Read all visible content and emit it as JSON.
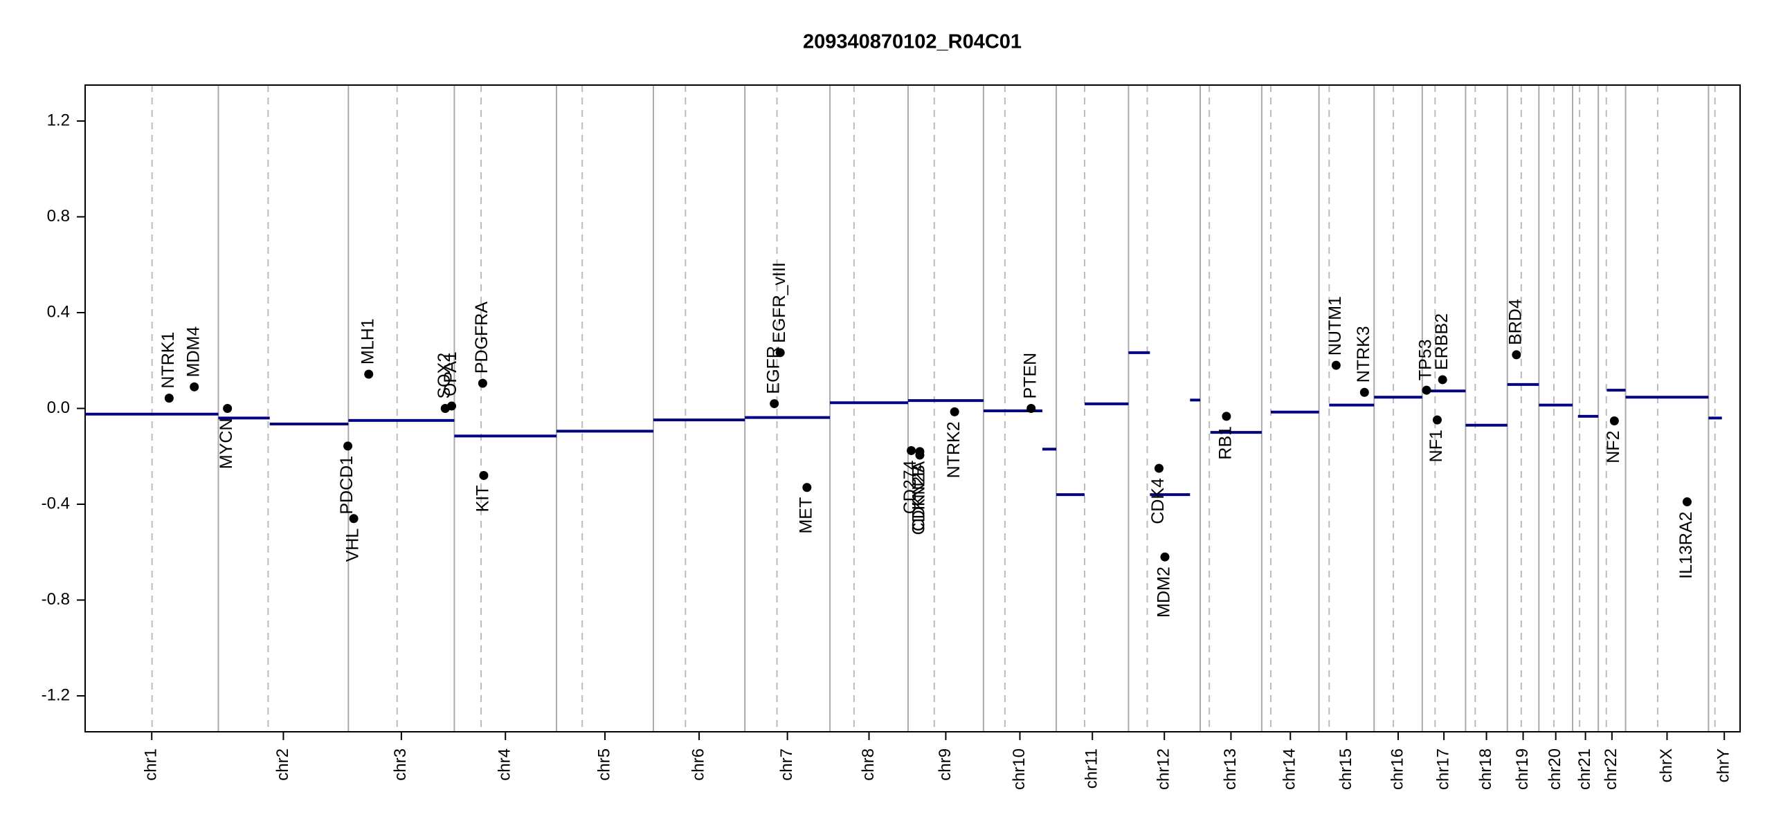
{
  "chart_data": {
    "type": "cnv",
    "title": "209340870102_R04C01",
    "ylim": [
      -1.35,
      1.35
    ],
    "yticks": [
      1.2,
      0.8,
      0.4,
      {
        "value": 0,
        "label": "0.0"
      },
      -0.4,
      -0.8,
      -1.2
    ],
    "chromosomes": [
      "chr1",
      "chr2",
      "chr3",
      "chr4",
      "chr5",
      "chr6",
      "chr7",
      "chr8",
      "chr9",
      "chr10",
      "chr11",
      "chr12",
      "chr13",
      "chr14",
      "chr15",
      "chr16",
      "chr17",
      "chr18",
      "chr19",
      "chr20",
      "chr21",
      "chr22",
      "chrX",
      "chrY"
    ],
    "lengths": [
      249,
      243,
      198,
      191,
      181,
      171,
      159,
      146,
      141,
      136,
      135,
      134,
      115,
      107,
      103,
      90,
      81,
      78,
      59,
      63,
      48,
      51,
      155,
      59
    ],
    "centromeres": [
      125,
      93,
      91,
      50,
      48,
      60,
      60,
      45,
      49,
      40,
      53,
      35,
      17,
      17,
      19,
      36,
      24,
      18,
      26,
      28,
      13,
      15,
      60,
      12
    ],
    "segment_color": "#000080",
    "segments": [
      {
        "chrom": "chr1",
        "start": 0,
        "end": 249,
        "value": -0.024
      },
      {
        "chrom": "chr2",
        "start": 0,
        "end": 96,
        "value": -0.04
      },
      {
        "chrom": "chr2",
        "start": 96,
        "end": 243,
        "value": -0.065
      },
      {
        "chrom": "chr3",
        "start": 0,
        "end": 198,
        "value": -0.05
      },
      {
        "chrom": "chr4",
        "start": 0,
        "end": 191,
        "value": -0.115
      },
      {
        "chrom": "chr5",
        "start": 0,
        "end": 181,
        "value": -0.095
      },
      {
        "chrom": "chr6",
        "start": 0,
        "end": 171,
        "value": -0.048
      },
      {
        "chrom": "chr7",
        "start": 0,
        "end": 159,
        "value": -0.038
      },
      {
        "chrom": "chr8",
        "start": 0,
        "end": 146,
        "value": 0.024
      },
      {
        "chrom": "chr9",
        "start": 0,
        "end": 141,
        "value": 0.033
      },
      {
        "chrom": "chr10",
        "start": 0,
        "end": 110,
        "value": -0.01
      },
      {
        "chrom": "chr10",
        "start": 110,
        "end": 136,
        "value": -0.17
      },
      {
        "chrom": "chr11",
        "start": 0,
        "end": 53,
        "value": -0.36
      },
      {
        "chrom": "chr11",
        "start": 53,
        "end": 135,
        "value": 0.019
      },
      {
        "chrom": "chr12",
        "start": 0,
        "end": 40,
        "value": 0.233
      },
      {
        "chrom": "chr12",
        "start": 40,
        "end": 115,
        "value": -0.36
      },
      {
        "chrom": "chr12",
        "start": 115,
        "end": 134,
        "value": 0.035
      },
      {
        "chrom": "chr13",
        "start": 19,
        "end": 115,
        "value": -0.1
      },
      {
        "chrom": "chr14",
        "start": 17,
        "end": 107,
        "value": -0.015
      },
      {
        "chrom": "chr15",
        "start": 19,
        "end": 103,
        "value": 0.014
      },
      {
        "chrom": "chr16",
        "start": 0,
        "end": 90,
        "value": 0.047
      },
      {
        "chrom": "chr17",
        "start": 0,
        "end": 81,
        "value": 0.073
      },
      {
        "chrom": "chr18",
        "start": 0,
        "end": 78,
        "value": -0.07
      },
      {
        "chrom": "chr19",
        "start": 0,
        "end": 59,
        "value": 0.1
      },
      {
        "chrom": "chr20",
        "start": 0,
        "end": 63,
        "value": 0.014
      },
      {
        "chrom": "chr21",
        "start": 10,
        "end": 48,
        "value": -0.033
      },
      {
        "chrom": "chr22",
        "start": 16,
        "end": 51,
        "value": 0.076
      },
      {
        "chrom": "chrX",
        "start": 0,
        "end": 155,
        "value": 0.047
      },
      {
        "chrom": "chrY",
        "start": 0,
        "end": 25,
        "value": -0.04
      }
    ],
    "genes": [
      {
        "name": "NTRK1",
        "chrom": "chr1",
        "pos": 157,
        "value": 0.043,
        "side": "above"
      },
      {
        "name": "MDM4",
        "chrom": "chr1",
        "pos": 204,
        "value": 0.09,
        "side": "above"
      },
      {
        "name": "MYCN",
        "chrom": "chr2",
        "pos": 17,
        "value": 0.0,
        "side": "below"
      },
      {
        "name": "PDCD1",
        "chrom": "chr2",
        "pos": 242,
        "value": -0.157,
        "side": "below"
      },
      {
        "name": "VHL",
        "chrom": "chr3",
        "pos": 10,
        "value": -0.46,
        "side": "below"
      },
      {
        "name": "MLH1",
        "chrom": "chr3",
        "pos": 38,
        "value": 0.143,
        "side": "above"
      },
      {
        "name": "SOX2",
        "chrom": "chr3",
        "pos": 181,
        "value": 0.0,
        "side": "above"
      },
      {
        "name": "OPA1",
        "chrom": "chr3",
        "pos": 193,
        "value": 0.01,
        "side": "above"
      },
      {
        "name": "PDGFRA",
        "chrom": "chr4",
        "pos": 53,
        "value": 0.105,
        "side": "above"
      },
      {
        "name": "KIT",
        "chrom": "chr4",
        "pos": 55,
        "value": -0.28,
        "side": "below"
      },
      {
        "name": "EGFR",
        "chrom": "chr7",
        "pos": 55,
        "value": 0.02,
        "side": "above"
      },
      {
        "name": "EGFR_vIII",
        "chrom": "chr7",
        "pos": 66,
        "value": 0.233,
        "side": "above"
      },
      {
        "name": "MET",
        "chrom": "chr7",
        "pos": 116,
        "value": -0.33,
        "side": "below"
      },
      {
        "name": "CD274",
        "chrom": "chr9",
        "pos": 6,
        "value": -0.176,
        "side": "below"
      },
      {
        "name": "CDKN2A",
        "chrom": "chr9",
        "pos": 22,
        "value": -0.18,
        "side": "below"
      },
      {
        "name": "CDKN2B",
        "chrom": "chr9",
        "pos": 22,
        "value": -0.195,
        "side": "below"
      },
      {
        "name": "NTRK2",
        "chrom": "chr9",
        "pos": 87,
        "value": -0.014,
        "side": "below"
      },
      {
        "name": "PTEN",
        "chrom": "chr10",
        "pos": 89,
        "value": 0.0,
        "side": "above"
      },
      {
        "name": "CDK4",
        "chrom": "chr12",
        "pos": 57,
        "value": -0.25,
        "side": "below"
      },
      {
        "name": "MDM2",
        "chrom": "chr12",
        "pos": 68,
        "value": -0.62,
        "side": "below"
      },
      {
        "name": "RB1",
        "chrom": "chr13",
        "pos": 49,
        "value": -0.033,
        "side": "below"
      },
      {
        "name": "NUTM1",
        "chrom": "chr15",
        "pos": 32,
        "value": 0.18,
        "side": "above"
      },
      {
        "name": "NTRK3",
        "chrom": "chr15",
        "pos": 85,
        "value": 0.067,
        "side": "above"
      },
      {
        "name": "TP53",
        "chrom": "chr17",
        "pos": 8,
        "value": 0.076,
        "side": "above"
      },
      {
        "name": "ERBB2",
        "chrom": "chr17",
        "pos": 38,
        "value": 0.12,
        "side": "above"
      },
      {
        "name": "NF1",
        "chrom": "chr17",
        "pos": 28,
        "value": -0.048,
        "side": "below"
      },
      {
        "name": "BRD4",
        "chrom": "chr19",
        "pos": 17,
        "value": 0.224,
        "side": "above"
      },
      {
        "name": "NF2",
        "chrom": "chr22",
        "pos": 30,
        "value": -0.052,
        "side": "below"
      },
      {
        "name": "IL13RA2",
        "chrom": "chrX",
        "pos": 115,
        "value": -0.39,
        "side": "below"
      }
    ]
  }
}
